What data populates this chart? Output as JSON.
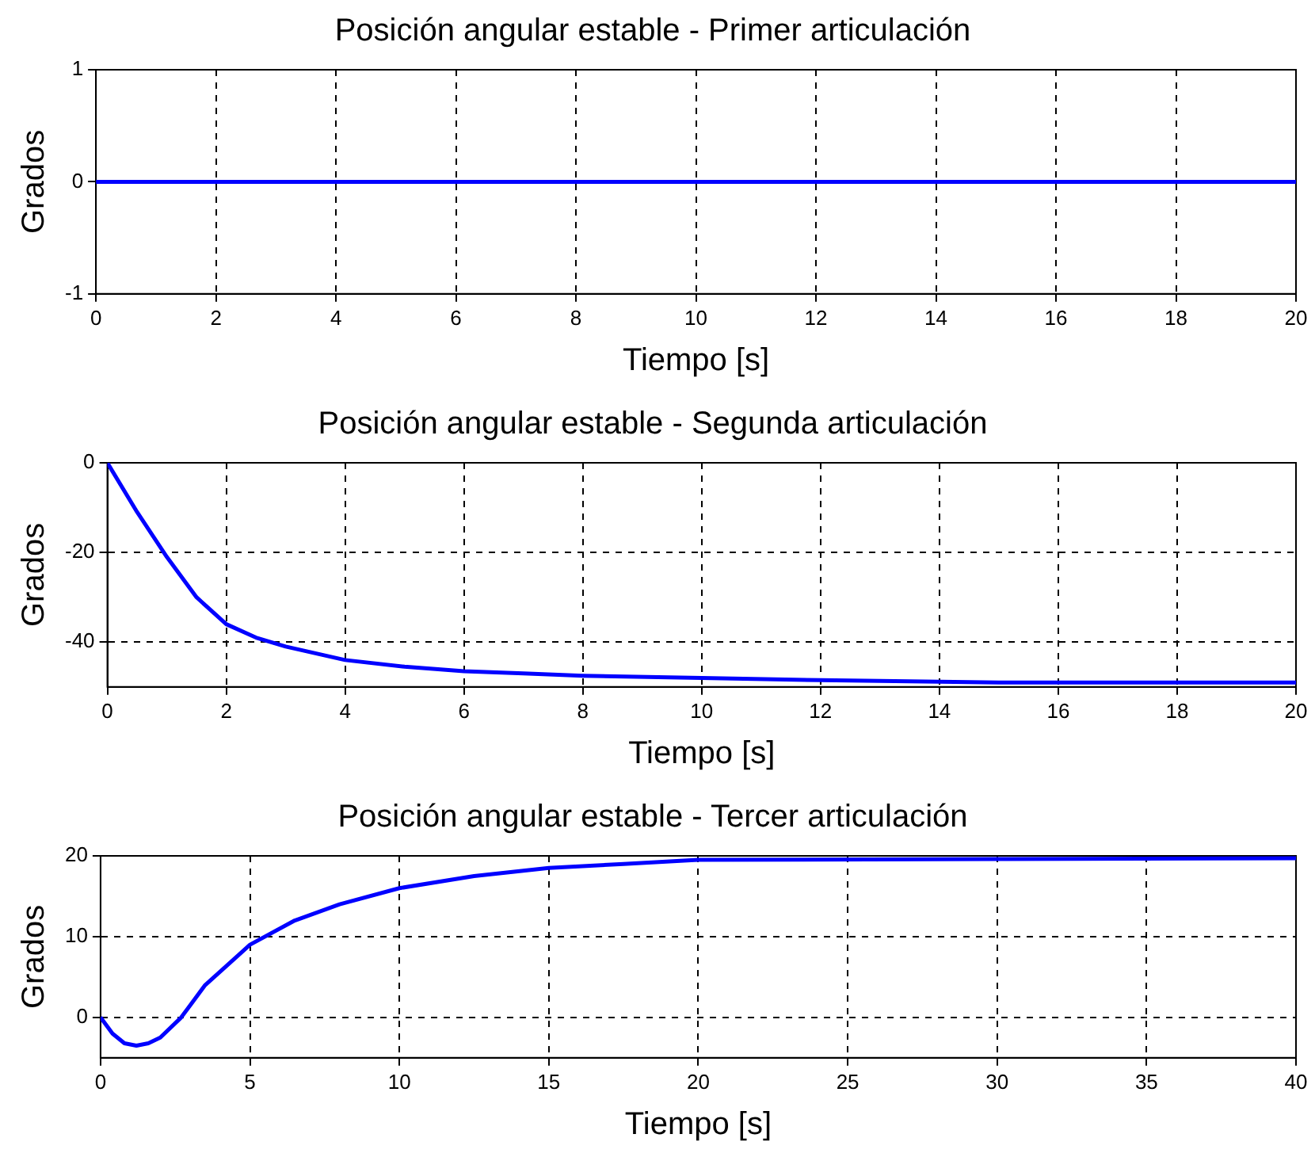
{
  "chart_data": [
    {
      "type": "line",
      "title": "Posición angular estable - Primer articulación",
      "xlabel": "Tiempo [s]",
      "ylabel": "Grados",
      "x": [
        0,
        20
      ],
      "series": [
        {
          "color": "#0000ff",
          "values": [
            0,
            0
          ]
        }
      ],
      "xlim": [
        0,
        20
      ],
      "xticks": [
        0,
        2,
        4,
        6,
        8,
        10,
        12,
        14,
        16,
        18,
        20
      ],
      "ylim": [
        -1,
        1
      ],
      "yticks": [
        -1,
        0,
        1
      ],
      "grid": true,
      "legend": false,
      "marker": "none"
    },
    {
      "type": "line",
      "title": "Posición angular estable - Segunda articulación",
      "xlabel": "Tiempo [s]",
      "ylabel": "Grados",
      "x": [
        0,
        0.5,
        1,
        1.5,
        2,
        2.5,
        3,
        4,
        5,
        6,
        7,
        8,
        10,
        12,
        15,
        20
      ],
      "series": [
        {
          "color": "#0000ff",
          "values": [
            0,
            -11,
            -21,
            -30,
            -36,
            -39,
            -41,
            -44,
            -45.5,
            -46.5,
            -47,
            -47.5,
            -48,
            -48.5,
            -49,
            -49
          ]
        }
      ],
      "xlim": [
        0,
        20
      ],
      "xticks": [
        0,
        2,
        4,
        6,
        8,
        10,
        12,
        14,
        16,
        18,
        20
      ],
      "ylim": [
        -50,
        0
      ],
      "yticks": [
        -40,
        -20,
        0
      ],
      "grid": true,
      "legend": false,
      "marker": "none"
    },
    {
      "type": "line",
      "title": "Posición angular estable - Tercer articulación",
      "xlabel": "Tiempo [s]",
      "ylabel": "Grados",
      "x": [
        0,
        0.4,
        0.8,
        1.2,
        1.6,
        2,
        2.7,
        3.5,
        4.7,
        5,
        6.5,
        8,
        10,
        12.5,
        15,
        17.5,
        20,
        30,
        40
      ],
      "series": [
        {
          "color": "#0000ff",
          "values": [
            0,
            -2,
            -3.2,
            -3.5,
            -3.2,
            -2.5,
            0,
            4,
            8,
            9,
            12,
            14,
            16,
            17.5,
            18.5,
            19,
            19.5,
            19.6,
            19.7
          ]
        }
      ],
      "xlim": [
        0,
        40
      ],
      "xticks": [
        0,
        5,
        10,
        15,
        20,
        25,
        30,
        35,
        40
      ],
      "ylim": [
        -5,
        20
      ],
      "yticks": [
        0,
        10,
        20
      ],
      "grid": true,
      "legend": false,
      "marker": "none"
    }
  ]
}
